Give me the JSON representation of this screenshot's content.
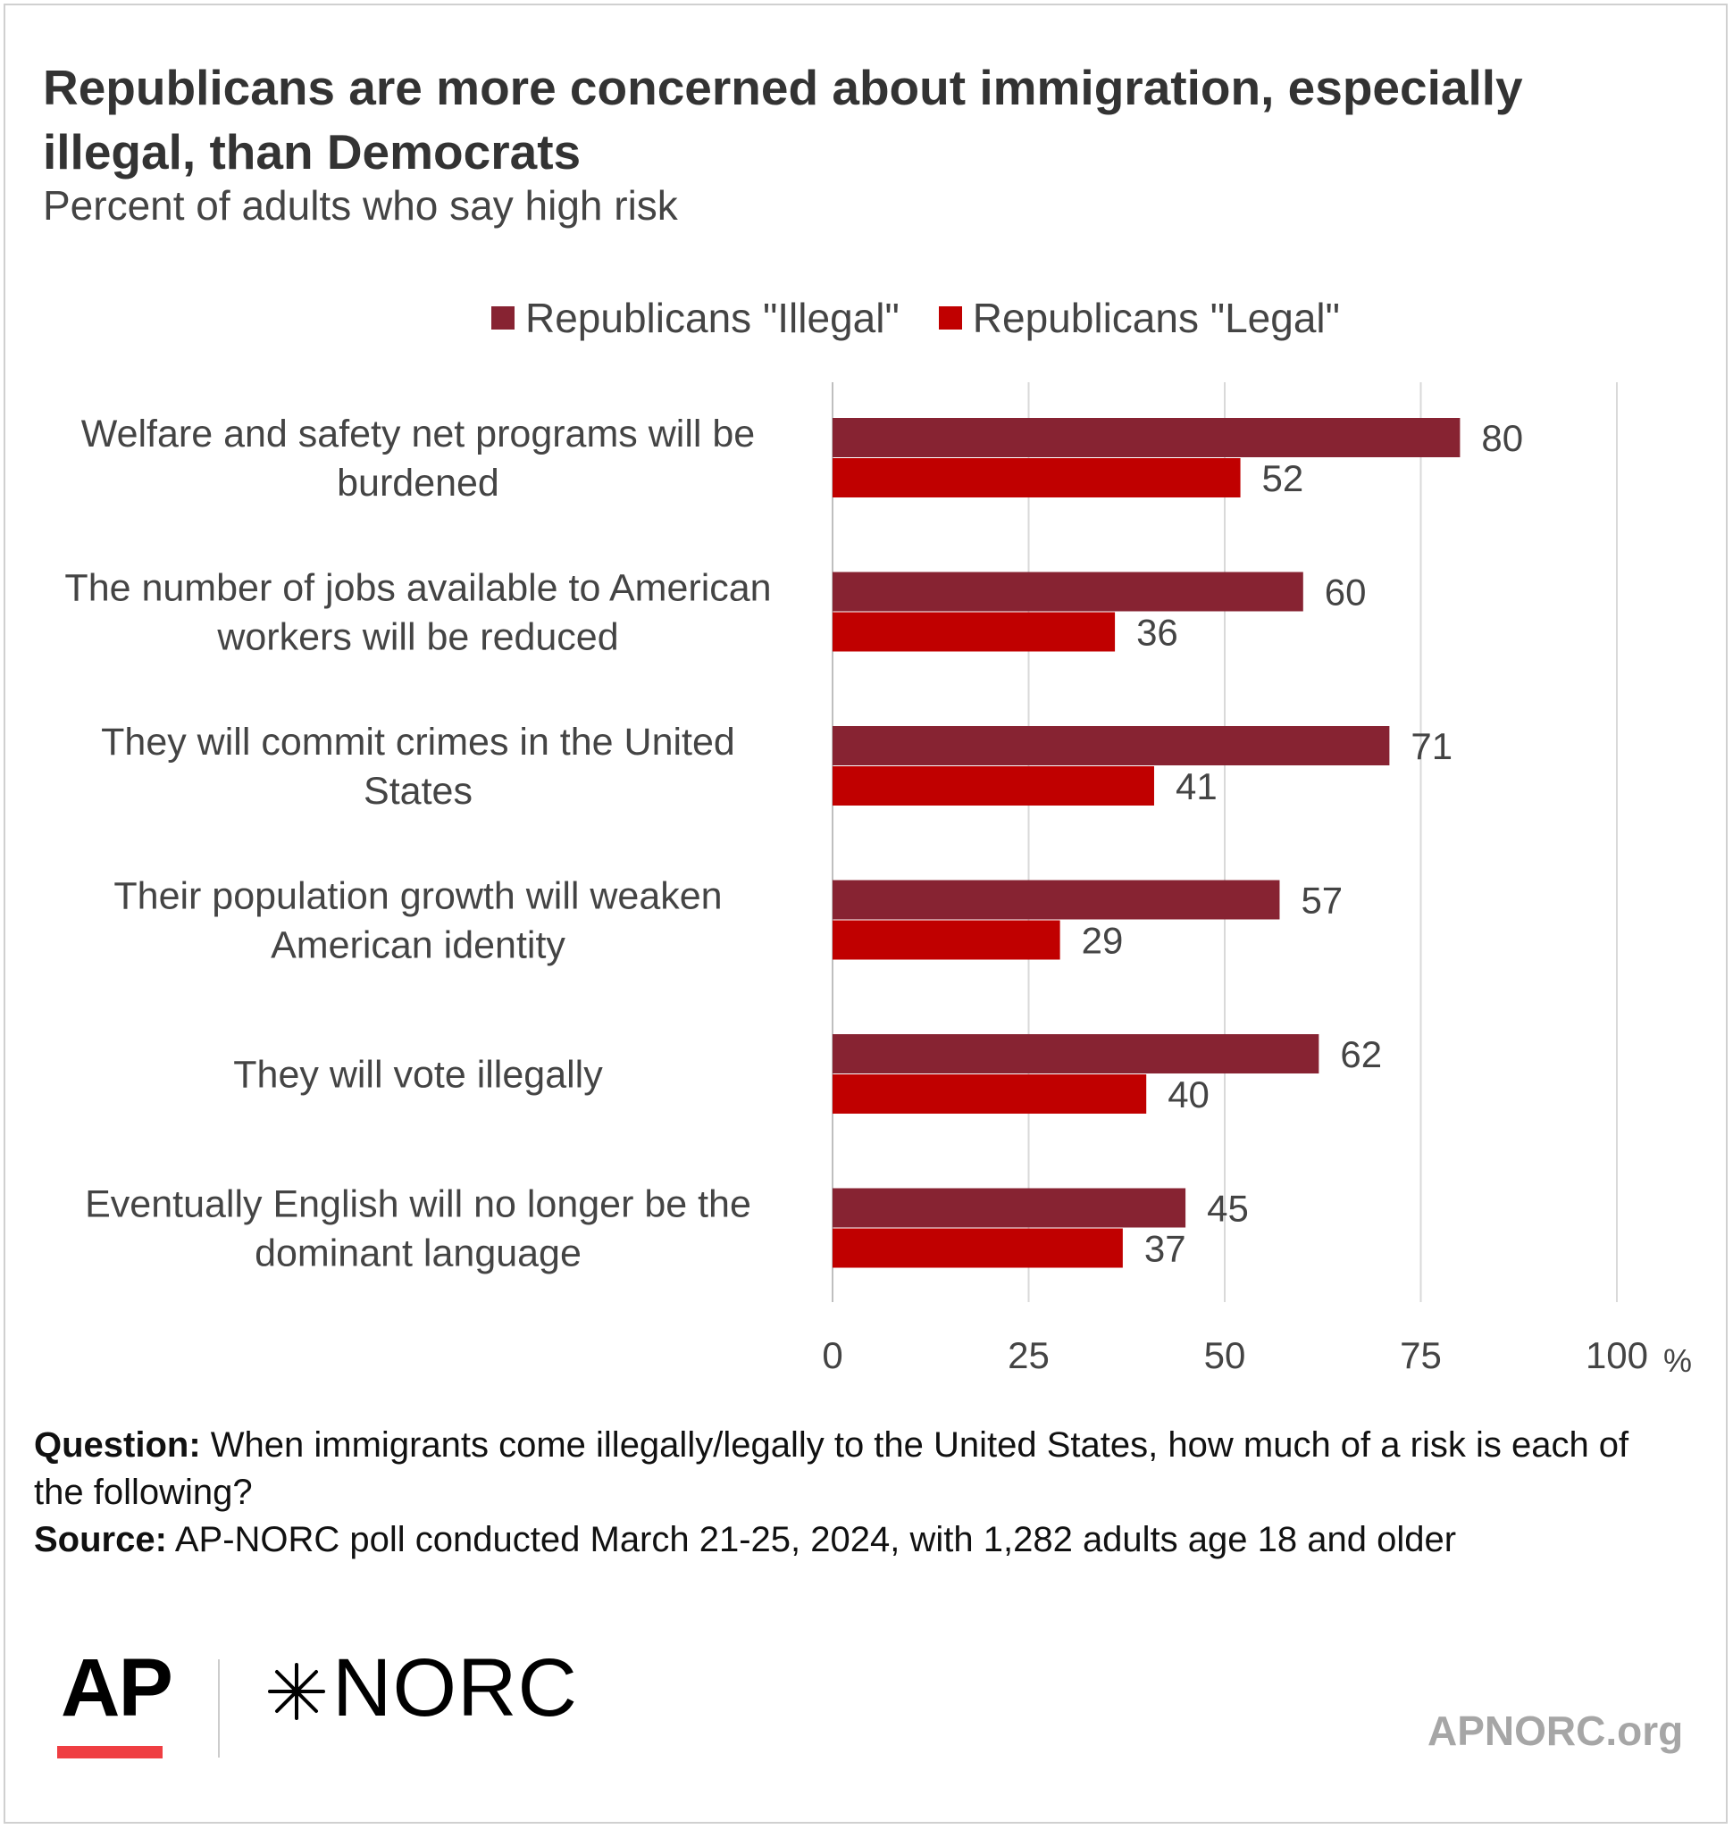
{
  "title": "Republicans are more concerned about immigration, especially illegal, than Democrats",
  "subtitle": "Percent of adults who say high risk",
  "chart_data": {
    "type": "bar",
    "orientation": "horizontal",
    "categories": [
      [
        "Welfare and safety net programs will be",
        "burdened"
      ],
      [
        "The number of jobs available to American",
        "workers will be reduced"
      ],
      [
        "They will commit crimes in the United",
        "States"
      ],
      [
        "Their population growth will weaken",
        "American identity"
      ],
      [
        "They will vote illegally"
      ],
      [
        "Eventually English will no longer be the",
        "dominant language"
      ]
    ],
    "series": [
      {
        "name": "Republicans \"Illegal\"",
        "color": "#872332",
        "values": [
          80,
          60,
          71,
          57,
          62,
          45
        ]
      },
      {
        "name": "Republicans \"Legal\"",
        "color": "#c00000",
        "values": [
          52,
          36,
          41,
          29,
          40,
          37
        ]
      }
    ],
    "xlim": [
      0,
      100
    ],
    "xticks": [
      "0",
      "25",
      "50",
      "75",
      "100"
    ],
    "xunit": "%",
    "grid": true,
    "legend_position": "top"
  },
  "footer": {
    "question_label": "Question:",
    "question_text": "When immigrants come illegally/legally to the United States, how much of a risk is each of the following?",
    "source_label": "Source:",
    "source_text": "AP-NORC poll conducted March 21-25, 2024, with 1,282 adults age 18 and older"
  },
  "logos": {
    "ap": "AP",
    "norc": "NORC",
    "url": "APNORC.org"
  }
}
